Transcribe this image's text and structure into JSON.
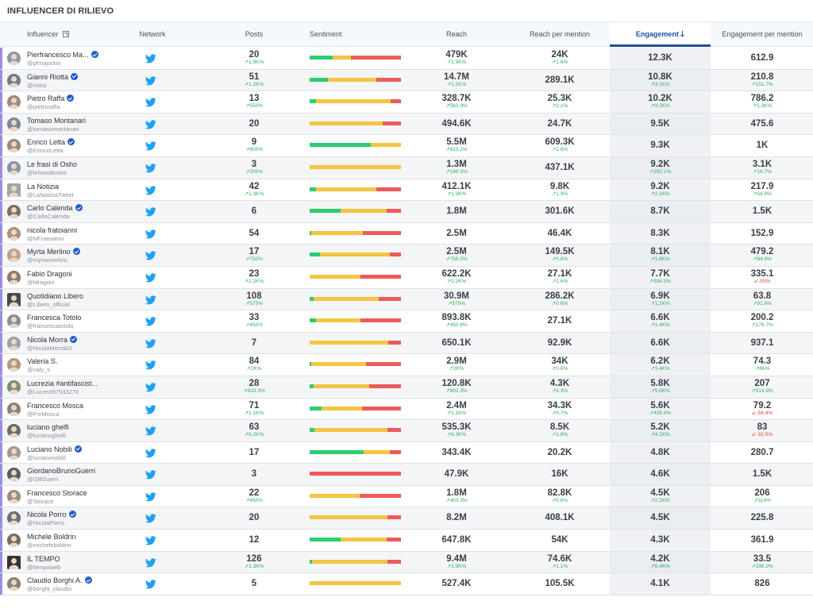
{
  "page_title": "INFLUENCER DI RILIEVO",
  "columns": {
    "influencer": "Influencer",
    "network": "Network",
    "posts": "Posts",
    "sentiment": "Sentiment",
    "reach": "Reach",
    "reach_per_mention": "Reach per mention",
    "engagement": "Engagement",
    "engagement_per_mention": "Engagement per mention"
  },
  "colors": {
    "positive": "#2ecc71",
    "neutral": "#f5c542",
    "negative": "#ec5b5b",
    "accent": "#1f4fa0",
    "up": "#2eae5d",
    "down": "#e0413b"
  },
  "rows": [
    {
      "name": "Pierfrancesco Ma...",
      "handle": "@pfmajorino",
      "verified": true,
      "marker": true,
      "posts": "20",
      "posts_d": "↗1.9K%",
      "sent": [
        0.25,
        0.2,
        0.55
      ],
      "reach": "479K",
      "reach_d": "↗1.9K%",
      "rpm": "24K",
      "rpm_d": "↗1.6%",
      "eng": "12.3K",
      "eng_d": "",
      "epm": "612.9",
      "epm_d": "",
      "epm_dir": "up"
    },
    {
      "name": "Gianni Riotta",
      "handle": "@riotta",
      "verified": true,
      "marker": true,
      "posts": "51",
      "posts_d": "↗1.2K%",
      "sent": [
        0.2,
        0.53,
        0.27
      ],
      "reach": "14.7M",
      "reach_d": "↗1.2K%",
      "rpm": "289.1K",
      "rpm_d": "",
      "eng": "10.8K",
      "eng_d": "↗3.1K%",
      "epm": "210.8",
      "epm_d": "↗151.7%",
      "epm_dir": "up"
    },
    {
      "name": "Pietro Raffa",
      "handle": "@pietroraffa",
      "verified": true,
      "marker": true,
      "posts": "13",
      "posts_d": "↗550%",
      "sent": [
        0.07,
        0.82,
        0.11
      ],
      "reach": "328.7K",
      "reach_d": "↗563.9%",
      "rpm": "25.3K",
      "rpm_d": "↗2.1%",
      "eng": "10.2K",
      "eng_d": "↗9.2K%",
      "epm": "786.2",
      "epm_d": "↗1.3K%",
      "epm_dir": "up"
    },
    {
      "name": "Tomaso Montanari",
      "handle": "@tomasomontanari",
      "verified": false,
      "marker": true,
      "posts": "20",
      "posts_d": "",
      "sent": [
        0,
        0.8,
        0.2
      ],
      "reach": "494.6K",
      "reach_d": "",
      "rpm": "24.7K",
      "rpm_d": "",
      "eng": "9.5K",
      "eng_d": "",
      "epm": "475.6",
      "epm_d": "",
      "epm_dir": "up"
    },
    {
      "name": "Enrico Letta",
      "handle": "@EnricoLetta",
      "verified": true,
      "marker": true,
      "posts": "9",
      "posts_d": "↗800%",
      "sent": [
        0.67,
        0.33,
        0
      ],
      "reach": "5.5M",
      "reach_d": "↗823.1%",
      "rpm": "609.3K",
      "rpm_d": "↗2.6%",
      "eng": "9.3K",
      "eng_d": "",
      "epm": "1K",
      "epm_d": "",
      "epm_dir": "up"
    },
    {
      "name": "Le frasi di Osho",
      "handle": "@lefrasidiosho",
      "verified": false,
      "marker": true,
      "posts": "3",
      "posts_d": "↗200%",
      "sent": [
        0,
        1,
        0
      ],
      "reach": "1.3M",
      "reach_d": "↗199.3%",
      "rpm": "437.1K",
      "rpm_d": "",
      "eng": "9.2K",
      "eng_d": "↗250.1%",
      "epm": "3.1K",
      "epm_d": "↗16.7%",
      "epm_dir": "up"
    },
    {
      "name": "La Notizia",
      "handle": "@LaNotiziaTweet",
      "verified": false,
      "marker": true,
      "posts": "42",
      "posts_d": "↗1.3K%",
      "sent": [
        0.07,
        0.66,
        0.27
      ],
      "reach": "412.1K",
      "reach_d": "↗1.3K%",
      "rpm": "9.8K",
      "rpm_d": "↗1.9%",
      "eng": "9.2K",
      "eng_d": "↗2.1K%",
      "epm": "217.9",
      "epm_d": "↗54.9%",
      "epm_dir": "up"
    },
    {
      "name": "Carlo Calenda",
      "handle": "@CarloCalenda",
      "verified": true,
      "marker": true,
      "posts": "6",
      "posts_d": "",
      "sent": [
        0.34,
        0.5,
        0.16
      ],
      "reach": "1.8M",
      "reach_d": "",
      "rpm": "301.6K",
      "rpm_d": "",
      "eng": "8.7K",
      "eng_d": "",
      "epm": "1.5K",
      "epm_d": "",
      "epm_dir": "up"
    },
    {
      "name": "nicola fratoianni",
      "handle": "@NFratoianni",
      "verified": false,
      "marker": true,
      "posts": "54",
      "posts_d": "",
      "sent": [
        0.02,
        0.56,
        0.42
      ],
      "reach": "2.5M",
      "reach_d": "",
      "rpm": "46.4K",
      "rpm_d": "",
      "eng": "8.3K",
      "eng_d": "",
      "epm": "152.9",
      "epm_d": "",
      "epm_dir": "up"
    },
    {
      "name": "Myrta Merlino",
      "handle": "@myrtamerlino",
      "verified": true,
      "marker": true,
      "posts": "17",
      "posts_d": "↗750%",
      "sent": [
        0.11,
        0.77,
        0.12
      ],
      "reach": "2.5M",
      "reach_d": "↗756.5%",
      "rpm": "149.5K",
      "rpm_d": "↗0.8%",
      "eng": "8.1K",
      "eng_d": "↗1.6K%",
      "epm": "479.2",
      "epm_d": "↗94.8%",
      "epm_dir": "up"
    },
    {
      "name": "Fabio Dragoni",
      "handle": "@fdragoni",
      "verified": false,
      "marker": true,
      "posts": "23",
      "posts_d": "↗2.2K%",
      "sent": [
        0,
        0.56,
        0.44
      ],
      "reach": "622.2K",
      "reach_d": "↗2.2K%",
      "rpm": "27.1K",
      "rpm_d": "↗1.6%",
      "eng": "7.7K",
      "eng_d": "↗934.5%",
      "epm": "335.1",
      "epm_d": "↙-55%",
      "epm_dir": "down"
    },
    {
      "name": "Quotidiano Libero",
      "handle": "@Libero_official",
      "verified": false,
      "marker": true,
      "posts": "108",
      "posts_d": "↗575%",
      "sent": [
        0.04,
        0.72,
        0.24
      ],
      "reach": "30.9M",
      "reach_d": "↗579%",
      "rpm": "286.2K",
      "rpm_d": "↗0.6%",
      "eng": "6.9K",
      "eng_d": "↗1.2K%",
      "epm": "63.8",
      "epm_d": "↗91.6%",
      "epm_dir": "up"
    },
    {
      "name": "Francesca Totolo",
      "handle": "@francescatotolo",
      "verified": false,
      "marker": true,
      "posts": "33",
      "posts_d": "↗450%",
      "sent": [
        0.07,
        0.49,
        0.44
      ],
      "reach": "893.8K",
      "reach_d": "↗450.8%",
      "rpm": "27.1K",
      "rpm_d": "",
      "eng": "6.6K",
      "eng_d": "↗1.4K%",
      "epm": "200.2",
      "epm_d": "↗176.7%",
      "epm_dir": "up"
    },
    {
      "name": "Nicola Morra",
      "handle": "@NicolaMorra63",
      "verified": true,
      "marker": true,
      "posts": "7",
      "posts_d": "",
      "sent": [
        0,
        0.86,
        0.14
      ],
      "reach": "650.1K",
      "reach_d": "",
      "rpm": "92.9K",
      "rpm_d": "",
      "eng": "6.6K",
      "eng_d": "",
      "epm": "937.1",
      "epm_d": "",
      "epm_dir": "up"
    },
    {
      "name": "Valeria S.",
      "handle": "@valy_s",
      "verified": false,
      "marker": true,
      "posts": "84",
      "posts_d": "↗2K%",
      "sent": [
        0.02,
        0.6,
        0.38
      ],
      "reach": "2.9M",
      "reach_d": "↗2K%",
      "rpm": "34K",
      "rpm_d": "↗0.6%",
      "eng": "6.2K",
      "eng_d": "↗3.4K%",
      "epm": "74.3",
      "epm_d": "↗66%",
      "epm_dir": "up"
    },
    {
      "name": "Lucrezia #antifascist...",
      "handle": "@Lucrezi97533276",
      "verified": false,
      "marker": true,
      "posts": "28",
      "posts_d": "↗833.3%",
      "sent": [
        0.04,
        0.61,
        0.35
      ],
      "reach": "120.8K",
      "reach_d": "↗892.3%",
      "rpm": "4.3K",
      "rpm_d": "↗6.3%",
      "eng": "5.8K",
      "eng_d": "↗5.6K%",
      "epm": "207",
      "epm_d": "↗514.9%",
      "epm_dir": "up"
    },
    {
      "name": "Francesco Mosca",
      "handle": "@FmMosca",
      "verified": false,
      "marker": true,
      "posts": "71",
      "posts_d": "↗1.1K%",
      "sent": [
        0.13,
        0.44,
        0.43
      ],
      "reach": "2.4M",
      "reach_d": "↗1.1K%",
      "rpm": "34.3K",
      "rpm_d": "↗0.7%",
      "eng": "5.6K",
      "eng_d": "↗439.9%",
      "epm": "79.2",
      "epm_d": "↙-54.4%",
      "epm_dir": "down"
    },
    {
      "name": "luciano ghelfi",
      "handle": "@lucianoghelfi",
      "verified": false,
      "marker": true,
      "posts": "63",
      "posts_d": "↗6.2K%",
      "sent": [
        0.05,
        0.8,
        0.15
      ],
      "reach": "535.3K",
      "reach_d": "↗6.3K%",
      "rpm": "8.5K",
      "rpm_d": "↗1.9%",
      "eng": "5.2K",
      "eng_d": "↗4.2K%",
      "epm": "83",
      "epm_d": "↙-32.5%",
      "epm_dir": "down"
    },
    {
      "name": "Luciano Nobili",
      "handle": "@lucianonobili",
      "verified": true,
      "marker": true,
      "posts": "17",
      "posts_d": "",
      "sent": [
        0.59,
        0.29,
        0.12
      ],
      "reach": "343.4K",
      "reach_d": "",
      "rpm": "20.2K",
      "rpm_d": "",
      "eng": "4.8K",
      "eng_d": "",
      "epm": "280.7",
      "epm_d": "",
      "epm_dir": "up"
    },
    {
      "name": "GiordanoBrunoGuerri",
      "handle": "@GBGuerri",
      "verified": false,
      "marker": true,
      "posts": "3",
      "posts_d": "",
      "sent": [
        0,
        0,
        1
      ],
      "reach": "47.9K",
      "reach_d": "",
      "rpm": "16K",
      "rpm_d": "",
      "eng": "4.6K",
      "eng_d": "",
      "epm": "1.5K",
      "epm_d": "",
      "epm_dir": "up"
    },
    {
      "name": "Francesco Storace",
      "handle": "@Storace",
      "verified": false,
      "marker": true,
      "posts": "22",
      "posts_d": "↗450%",
      "sent": [
        0,
        0.55,
        0.45
      ],
      "reach": "1.8M",
      "reach_d": "↗453.3%",
      "rpm": "82.8K",
      "rpm_d": "↗0.6%",
      "eng": "4.5K",
      "eng_d": "↗2.2K%",
      "epm": "206",
      "epm_d": "↗314%",
      "epm_dir": "up"
    },
    {
      "name": "Nicola Porro",
      "handle": "@NicolaPorro",
      "verified": true,
      "marker": true,
      "posts": "20",
      "posts_d": "",
      "sent": [
        0,
        0.85,
        0.15
      ],
      "reach": "8.2M",
      "reach_d": "",
      "rpm": "408.1K",
      "rpm_d": "",
      "eng": "4.5K",
      "eng_d": "",
      "epm": "225.8",
      "epm_d": "",
      "epm_dir": "up"
    },
    {
      "name": "Michele Boldrin",
      "handle": "@micheleboldrin",
      "verified": false,
      "marker": true,
      "posts": "12",
      "posts_d": "",
      "sent": [
        0.34,
        0.5,
        0.16
      ],
      "reach": "647.8K",
      "reach_d": "",
      "rpm": "54K",
      "rpm_d": "",
      "eng": "4.3K",
      "eng_d": "",
      "epm": "361.9",
      "epm_d": "",
      "epm_dir": "up"
    },
    {
      "name": "IL TEMPO",
      "handle": "@tempoweb",
      "verified": false,
      "marker": true,
      "posts": "126",
      "posts_d": "↗1.3K%",
      "sent": [
        0.03,
        0.82,
        0.15
      ],
      "reach": "9.4M",
      "reach_d": "↗1.3K%",
      "rpm": "74.6K",
      "rpm_d": "↗1.1%",
      "eng": "4.2K",
      "eng_d": "↗5.4K%",
      "epm": "33.5",
      "epm_d": "↗296.2%",
      "epm_dir": "up"
    },
    {
      "name": "Claudio Borghi A.",
      "handle": "@borghi_claudio",
      "verified": true,
      "marker": true,
      "posts": "5",
      "posts_d": "",
      "sent": [
        0,
        1,
        0
      ],
      "reach": "527.4K",
      "reach_d": "",
      "rpm": "105.5K",
      "rpm_d": "",
      "eng": "4.1K",
      "eng_d": "",
      "epm": "826",
      "epm_d": "",
      "epm_dir": "up"
    }
  ]
}
